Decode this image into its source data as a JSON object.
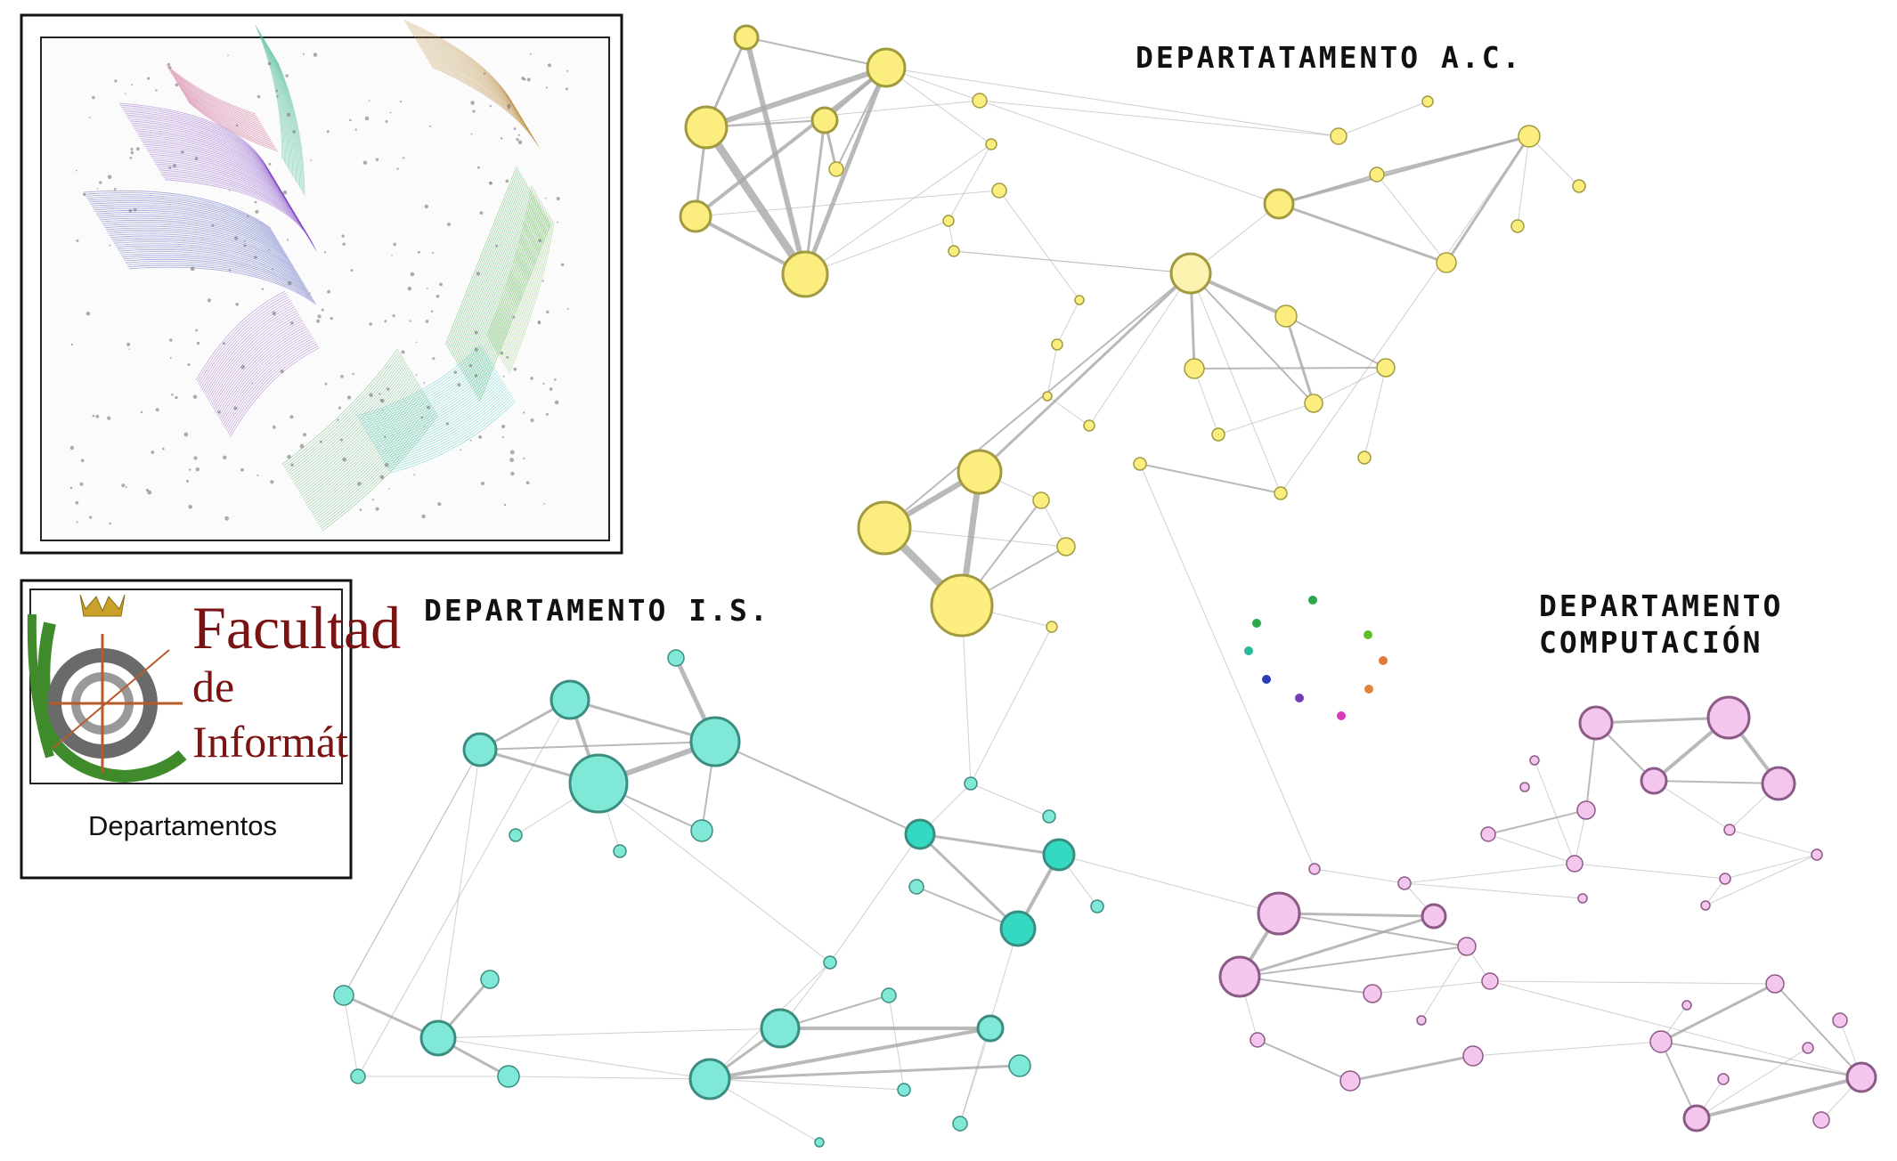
{
  "labels": {
    "dept_ac": "DEPARTATAMENTO A.C.",
    "dept_is": "DEPARTAMENTO I.S.",
    "dept_comp_line1": "DEPARTAMENTO",
    "dept_comp_line2": "COMPUTACIÓN",
    "caption": "Departamentos"
  },
  "logo": {
    "line1": "Facultad",
    "line2": "de",
    "line3": "Informát"
  },
  "colors": {
    "ac": "#fbee7f",
    "ac_light": "#fdf3b0",
    "ac_stroke": "#a19a40",
    "is": "#7fe8d6",
    "is_strong": "#35d9c2",
    "is_stroke": "#3a8d80",
    "comp": "#f4c6ee",
    "comp_stroke": "#8c5a86",
    "edge": "#a8a8a8",
    "frame": "#111111",
    "logo_red": "#7a1414",
    "logo_green": "#3f8a2a",
    "logo_gold": "#c8a02a"
  }
}
